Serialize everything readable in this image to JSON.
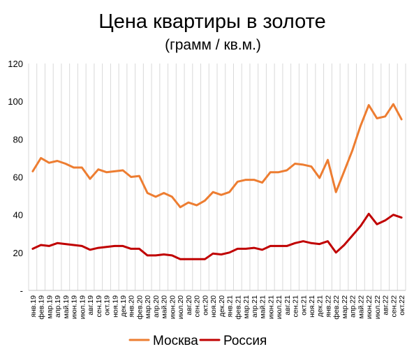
{
  "chart_data": {
    "type": "line",
    "title": "Цена квартиры в золоте",
    "subtitle": "(грамм / кв.м.)",
    "xlabel": "",
    "ylabel": "",
    "ylim": [
      0,
      120
    ],
    "y_ticks": [
      "-",
      "20",
      "40",
      "60",
      "80",
      "100",
      "120"
    ],
    "grid": "vertical",
    "legend_position": "bottom",
    "categories": [
      "янв.19",
      "фев.19",
      "мар.19",
      "апр.19",
      "май.19",
      "июн.19",
      "июл.19",
      "авг.19",
      "сен.19",
      "окт.19",
      "ноя.19",
      "дек.19",
      "янв.20",
      "фев.20",
      "мар.20",
      "апр.20",
      "май.20",
      "июн.20",
      "июл.20",
      "авг.20",
      "сен.20",
      "окт.20",
      "ноя.20",
      "дек.20",
      "янв.21",
      "фев.21",
      "мар.21",
      "апр.21",
      "май.21",
      "июн.21",
      "июл.21",
      "авг.21",
      "сен.21",
      "окт.21",
      "ноя.21",
      "дек.21",
      "янв.22",
      "фев.22",
      "мар.22",
      "апр.22",
      "май.22",
      "июн.22",
      "июл.22",
      "авг.22",
      "сен.22",
      "окт.22"
    ],
    "series": [
      {
        "name": "Москва",
        "color": "#ED7D31",
        "values": [
          63,
          70,
          67.5,
          68.5,
          67,
          65,
          65,
          59,
          64,
          62.5,
          63,
          63.5,
          60,
          60.5,
          51.5,
          49.5,
          51.5,
          49.5,
          44,
          46.5,
          45,
          47.5,
          52,
          50.5,
          52,
          57.5,
          58.5,
          58.5,
          57,
          62.5,
          62.5,
          63.5,
          67,
          66.5,
          65.5,
          59.5,
          69,
          52,
          63,
          74,
          87,
          98,
          91,
          92,
          98.5,
          90.5
        ]
      },
      {
        "name": "Россия",
        "color": "#C00000",
        "values": [
          22,
          24,
          23.5,
          25,
          24.5,
          24,
          23.5,
          21.5,
          22.5,
          23,
          23.5,
          23.5,
          22,
          22,
          18.5,
          18.5,
          19,
          18.5,
          16.5,
          16.5,
          16.5,
          16.5,
          19.5,
          19,
          20,
          22,
          22,
          22.5,
          21.5,
          23.5,
          23.5,
          23.5,
          25,
          26,
          25,
          24.5,
          26,
          20,
          24,
          29,
          34,
          40.5,
          35,
          37,
          40,
          38.5
        ]
      }
    ]
  }
}
